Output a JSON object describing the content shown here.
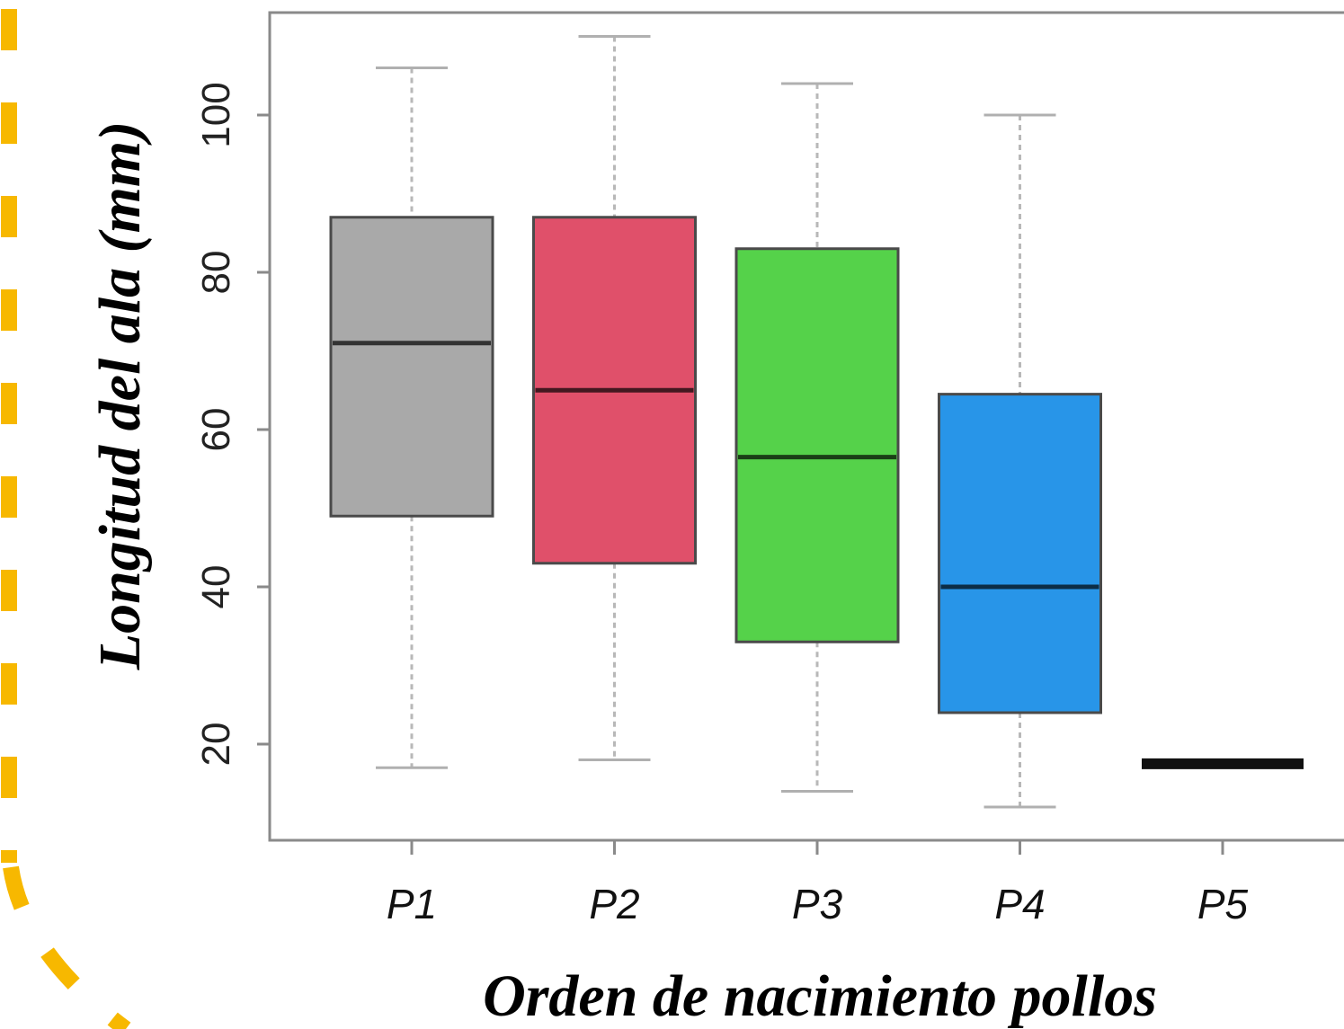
{
  "chart_data": {
    "type": "box",
    "xlabel": "Orden de nacimiento pollos",
    "ylabel": "Longitud del ala (mm)",
    "ylim": [
      9,
      114
    ],
    "yticks": [
      20,
      40,
      60,
      80,
      100
    ],
    "grid": false,
    "legend": "none",
    "categories": [
      "P1",
      "P2",
      "P3",
      "P4",
      "P5"
    ],
    "boxes": [
      {
        "category": "P1",
        "min": 17,
        "q1": 49,
        "median": 71,
        "q3": 87,
        "max": 106,
        "color": "#a9a9a9"
      },
      {
        "category": "P2",
        "min": 18,
        "q1": 43,
        "median": 65,
        "q3": 87,
        "max": 110,
        "color": "#e0506a"
      },
      {
        "category": "P3",
        "min": 14,
        "q1": 33,
        "median": 56.5,
        "q3": 83,
        "max": 104,
        "color": "#55d24a"
      },
      {
        "category": "P4",
        "min": 12,
        "q1": 24,
        "median": 40,
        "q3": 64.5,
        "max": 100,
        "color": "#2895e8"
      },
      {
        "category": "P5",
        "min": 17.5,
        "q1": 17.5,
        "median": 17.5,
        "q3": 17.5,
        "max": 17.5,
        "color": "#111111"
      }
    ],
    "accent_color": "#f7b800"
  }
}
